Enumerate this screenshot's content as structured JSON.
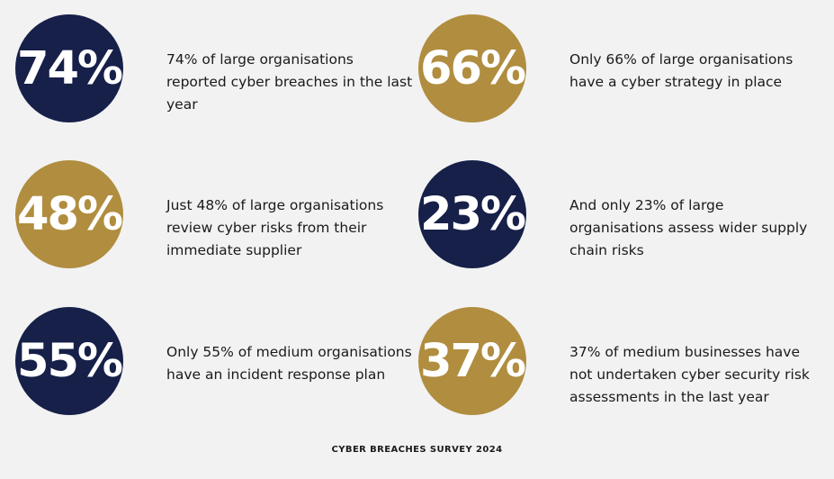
{
  "stats": [
    {
      "value": "74%",
      "text": "74% of large organisations reported cyber breaches in the last year",
      "color": "#162049"
    },
    {
      "value": "66%",
      "text": "Only 66% of large organisations have a cyber strategy in place",
      "color": "#b08d3f"
    },
    {
      "value": "48%",
      "text": "Just 48% of large organisations review cyber risks from their immediate supplier",
      "color": "#b08d3f"
    },
    {
      "value": "23%",
      "text": "And only 23% of large organisations assess wider supply chain risks",
      "color": "#162049"
    },
    {
      "value": "55%",
      "text": "Only 55% of medium organisations have an incident response plan",
      "color": "#162049"
    },
    {
      "value": "37%",
      "text": "37% of medium businesses have not undertaken cyber security risk assessments in the last year",
      "color": "#b08d3f"
    }
  ],
  "footer": {
    "source": "CYBER BREACHES SURVEY 2024"
  },
  "colors": {
    "navy": "#162049",
    "gold": "#b08d3f",
    "background": "#f2f2f2"
  }
}
